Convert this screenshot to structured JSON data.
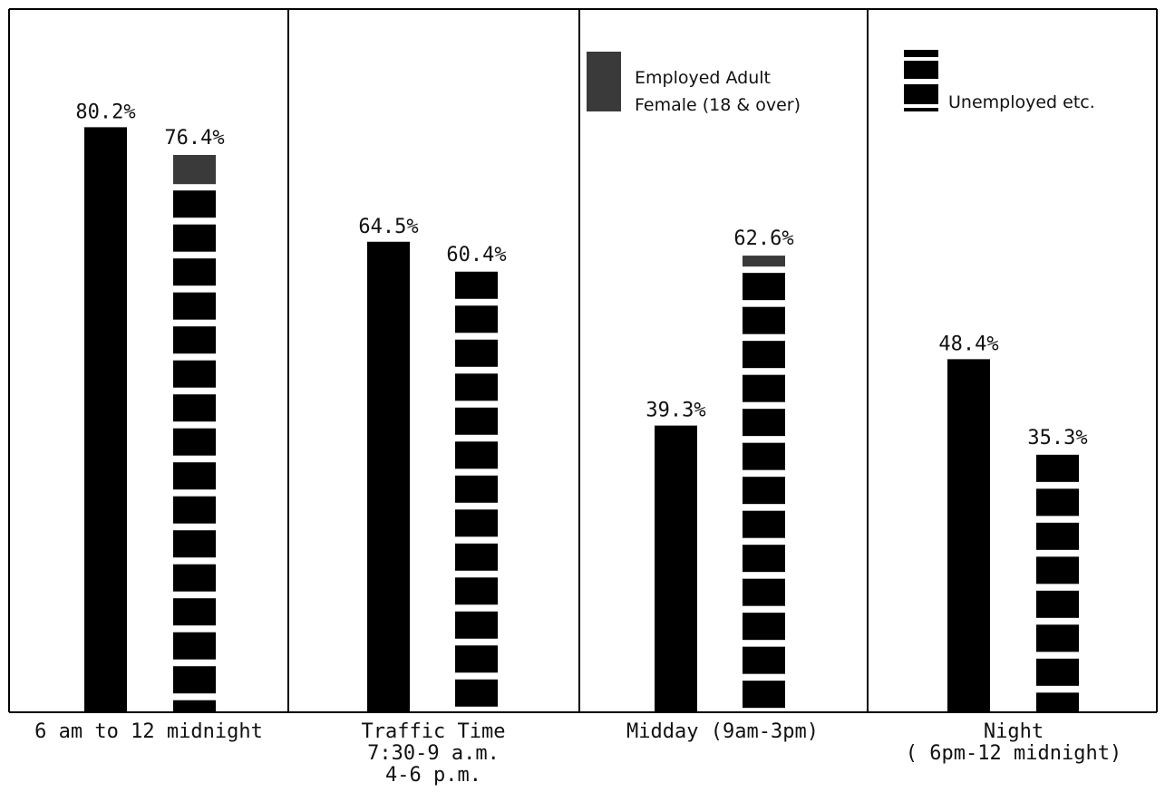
{
  "chart_data": {
    "type": "bar",
    "categories": [
      [
        "6 am to 12 midnight"
      ],
      [
        "Traffic Time",
        "7:30-9 a.m.",
        "4-6 p.m."
      ],
      [
        "Midday (9am-3pm)"
      ],
      [
        "Night",
        "( 6pm-12 midnight)"
      ]
    ],
    "series": [
      {
        "name": "",
        "values": [
          80.2,
          64.5,
          39.3,
          48.4
        ],
        "labels": [
          "80.2%",
          "64.5%",
          "39.3%",
          "48.4%"
        ],
        "pattern": "solid"
      },
      {
        "name": "",
        "values": [
          76.4,
          60.4,
          62.6,
          35.3
        ],
        "labels": [
          "76.4%",
          "60.4%",
          "62.6%",
          "35.3%"
        ],
        "pattern": "striped",
        "employed_female_share": [
          4.5,
          0,
          2.0,
          0
        ]
      }
    ],
    "legend": [
      {
        "text": [
          "Employed Adult",
          "Female (18 & over)"
        ],
        "pattern": "dark-gray",
        "placement": "midday-panel-top"
      },
      {
        "text": [
          "Unemployed etc."
        ],
        "pattern": "striped",
        "placement": "night-panel-top"
      }
    ],
    "ylim": [
      0,
      100
    ],
    "grid": false,
    "colors": {
      "solid": "#000000",
      "female": "#3a3a3a",
      "stripe_gap": "#ffffff",
      "frame": "#000000"
    }
  }
}
